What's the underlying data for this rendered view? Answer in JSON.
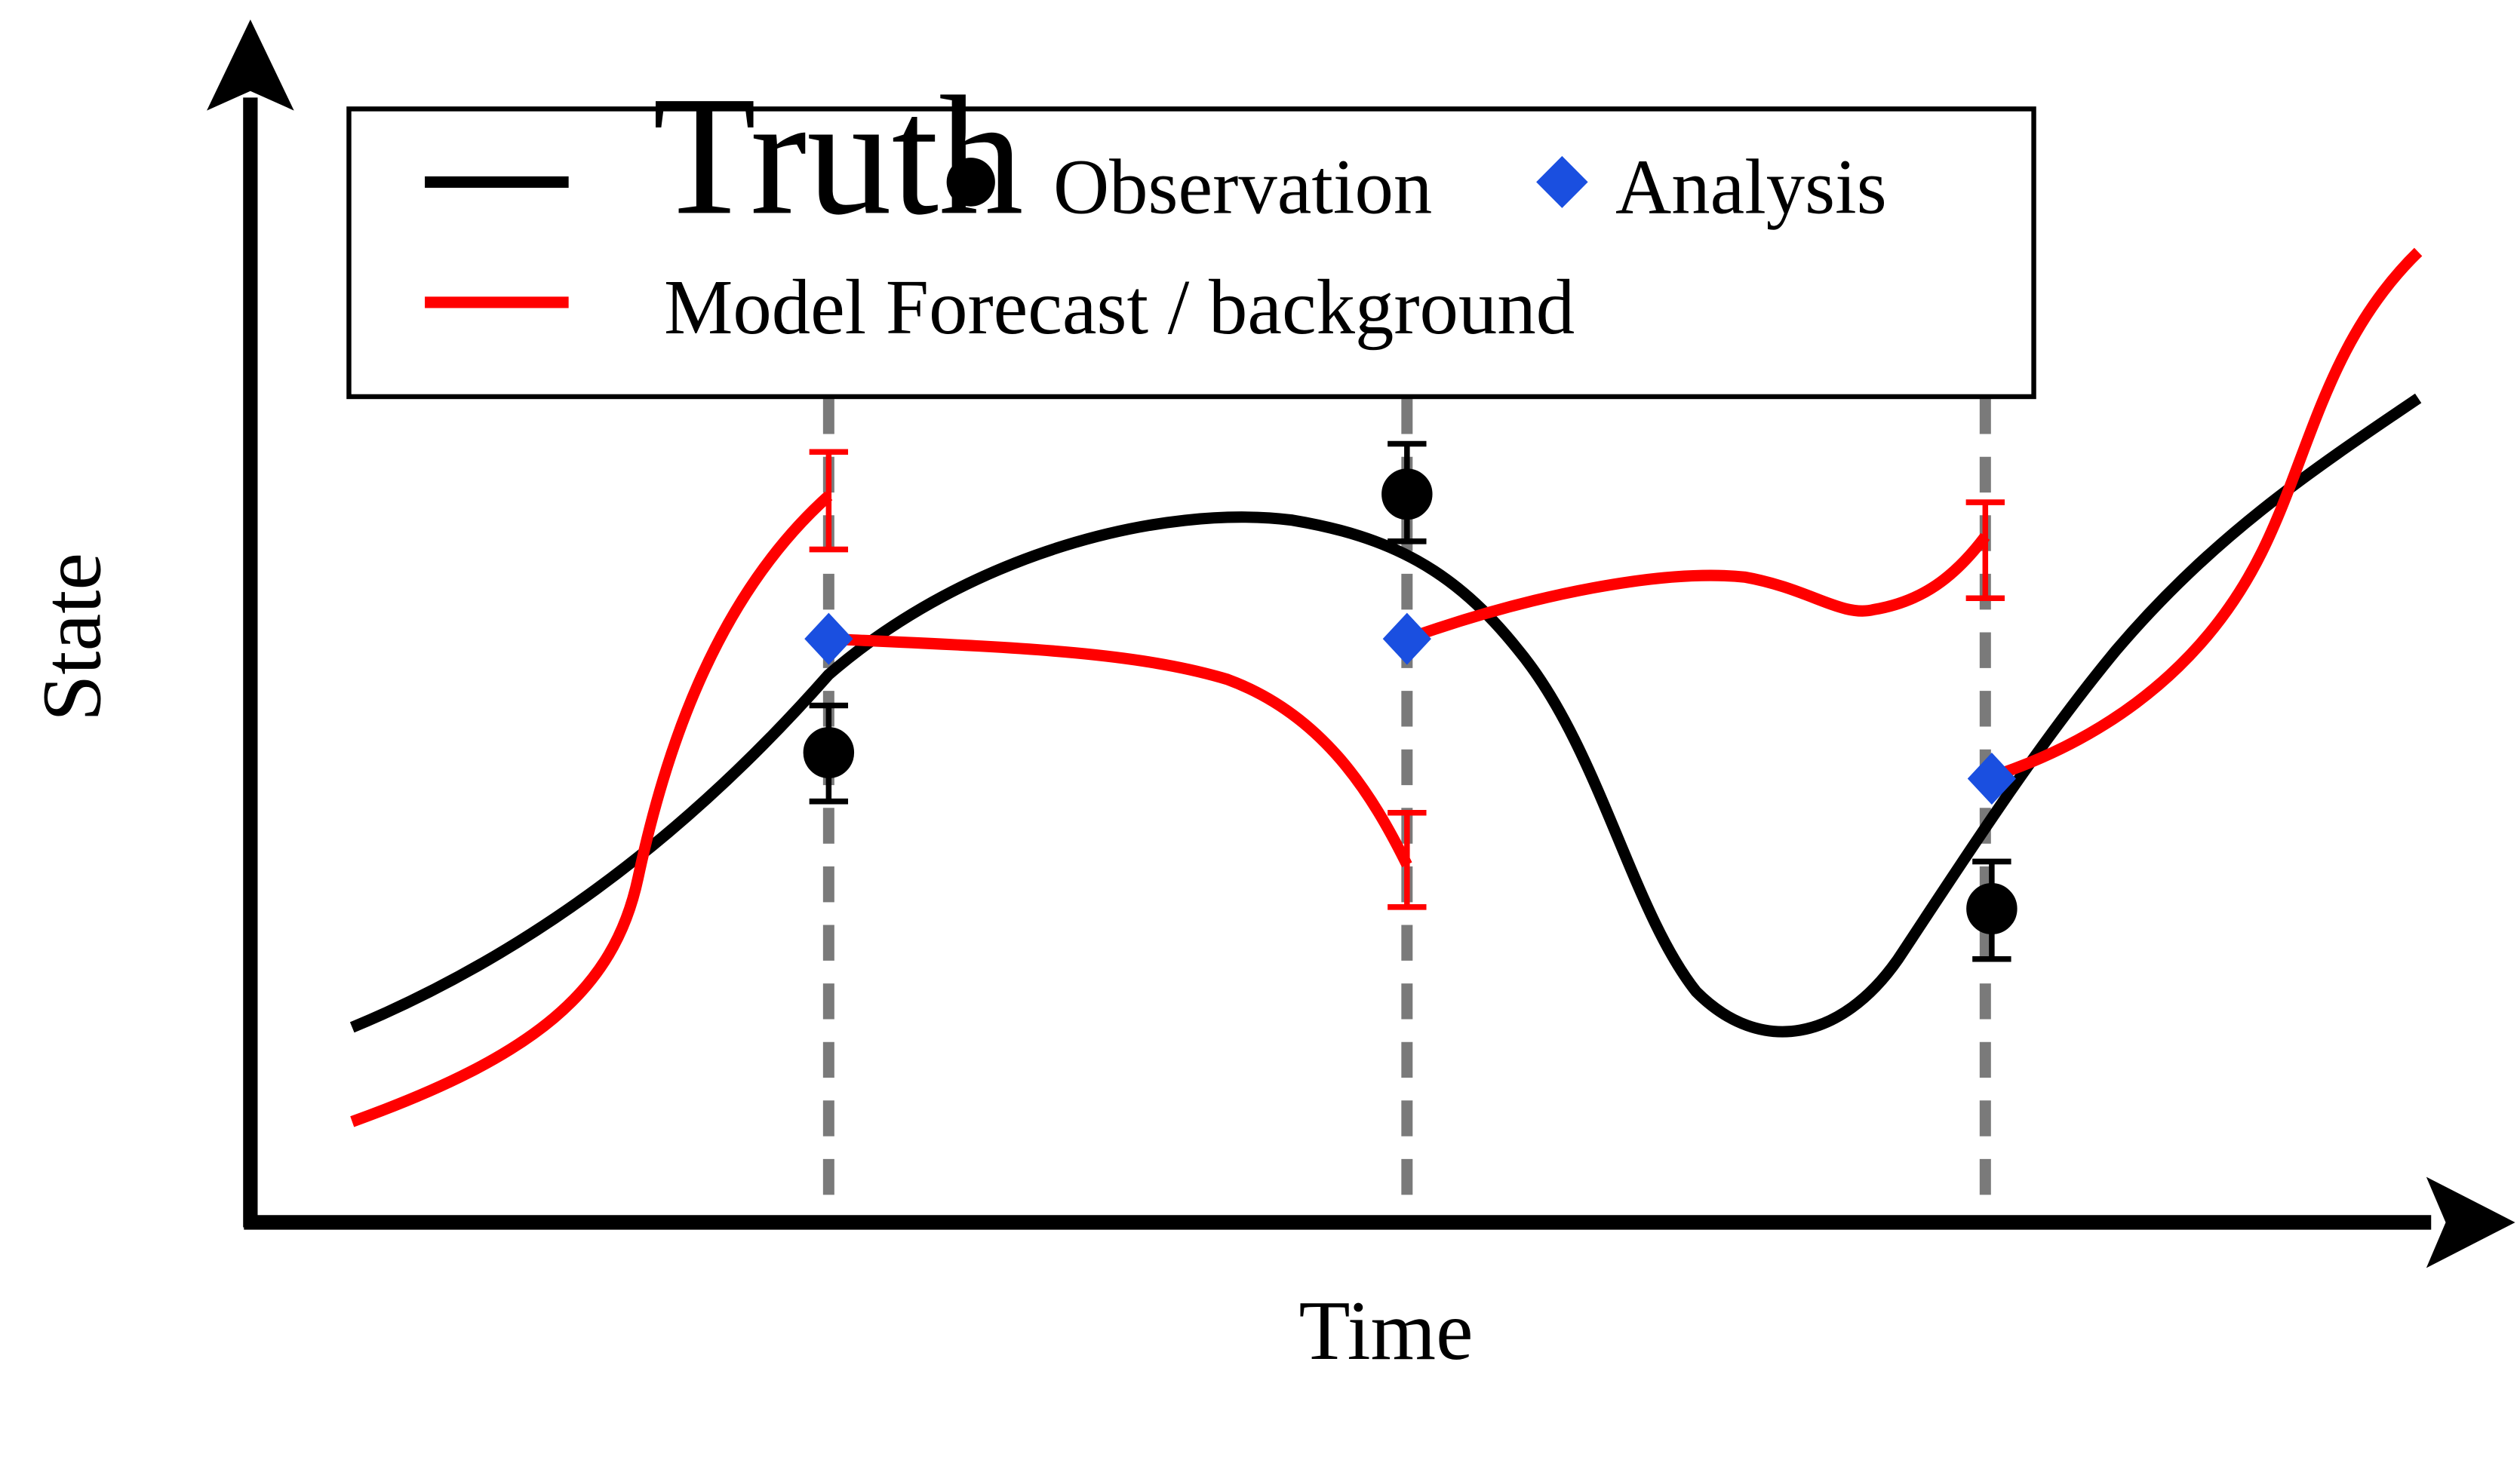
{
  "axes": {
    "xlabel": "Time",
    "ylabel": "State"
  },
  "legend": {
    "truth": "Truth",
    "observation": "Observation",
    "analysis": "Analysis",
    "forecast": "Model Forecast / background"
  },
  "colors": {
    "truth": "#000000",
    "forecast": "#ff0000",
    "analysis": "#1a4fe0",
    "observation": "#000000",
    "assimilation_line": "#7a7a7a"
  },
  "assimilation_times": [
    1,
    2,
    3
  ]
}
